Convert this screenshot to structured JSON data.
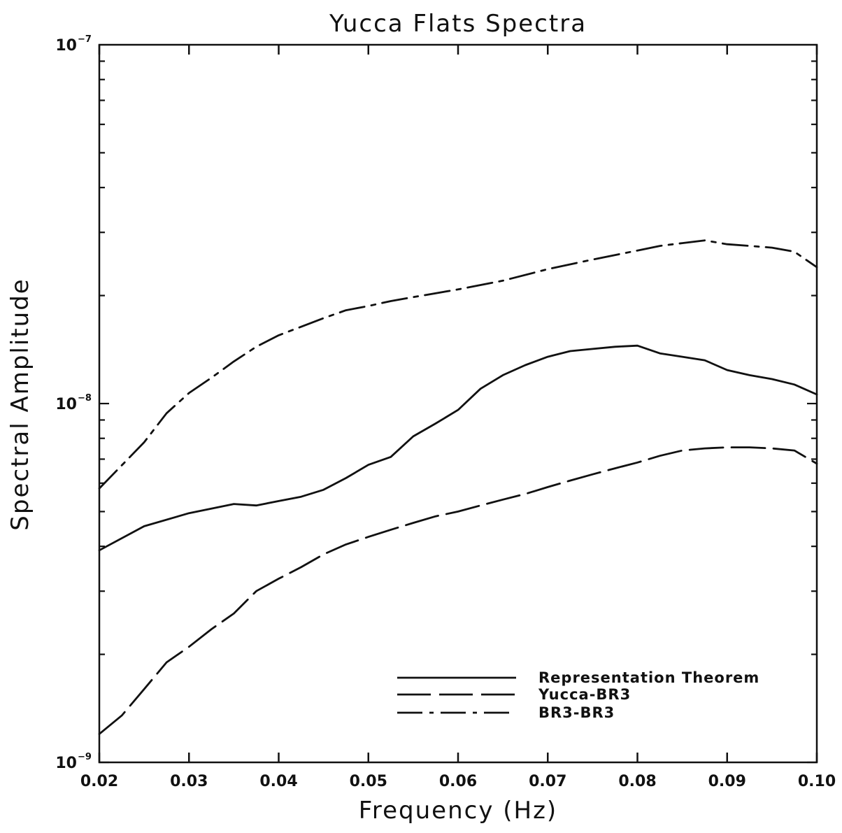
{
  "chart_data": {
    "type": "line",
    "title": "Yucca Flats Spectra",
    "xlabel": "Frequency (Hz)",
    "ylabel": "Spectral Amplitude",
    "xlim": [
      0.02,
      0.1
    ],
    "ylim": [
      1e-09,
      1e-07
    ],
    "yscale": "log",
    "grid": false,
    "legend_position": "bottom-right",
    "x_ticks": [
      0.02,
      0.03,
      0.04,
      0.05,
      0.06,
      0.07,
      0.08,
      0.09,
      0.1
    ],
    "x_tick_labels": [
      "0.02",
      "0.03",
      "0.04",
      "0.05",
      "0.06",
      "0.07",
      "0.08",
      "0.09",
      "0.10"
    ],
    "y_tick_labels": [
      {
        "value": 1e-09,
        "base": "10",
        "exp": "−9"
      },
      {
        "value": 1e-08,
        "base": "10",
        "exp": "−8"
      },
      {
        "value": 1e-07,
        "base": "10",
        "exp": "−7"
      }
    ],
    "series": [
      {
        "name": "Representation Theorem",
        "style": "solid",
        "x": [
          0.02,
          0.025,
          0.03,
          0.035,
          0.0375,
          0.04,
          0.0425,
          0.045,
          0.0475,
          0.05,
          0.0525,
          0.055,
          0.0575,
          0.06,
          0.0625,
          0.065,
          0.0675,
          0.07,
          0.0725,
          0.075,
          0.0775,
          0.08,
          0.0825,
          0.085,
          0.0875,
          0.09,
          0.0925,
          0.095,
          0.0975,
          0.1
        ],
        "y": [
          3.9e-09,
          4.55e-09,
          4.95e-09,
          5.25e-09,
          5.2e-09,
          5.35e-09,
          5.5e-09,
          5.75e-09,
          6.2e-09,
          6.75e-09,
          7.1e-09,
          8.1e-09,
          8.8e-09,
          9.6e-09,
          1.1e-08,
          1.2e-08,
          1.28e-08,
          1.35e-08,
          1.4e-08,
          1.42e-08,
          1.44e-08,
          1.45e-08,
          1.38e-08,
          1.35e-08,
          1.32e-08,
          1.24e-08,
          1.2e-08,
          1.17e-08,
          1.13e-08,
          1.06e-08
        ]
      },
      {
        "name": "Yucca-BR3",
        "style": "dashed",
        "x": [
          0.02,
          0.0225,
          0.025,
          0.0275,
          0.03,
          0.0325,
          0.035,
          0.0375,
          0.04,
          0.0425,
          0.045,
          0.0475,
          0.05,
          0.0525,
          0.055,
          0.0575,
          0.06,
          0.0625,
          0.065,
          0.0675,
          0.07,
          0.0725,
          0.075,
          0.0775,
          0.08,
          0.0825,
          0.085,
          0.0875,
          0.09,
          0.0925,
          0.095,
          0.0975,
          0.1
        ],
        "y": [
          1.2e-09,
          1.35e-09,
          1.6e-09,
          1.9e-09,
          2.1e-09,
          2.35e-09,
          2.6e-09,
          3e-09,
          3.25e-09,
          3.5e-09,
          3.8e-09,
          4.05e-09,
          4.25e-09,
          4.45e-09,
          4.65e-09,
          4.85e-09,
          5e-09,
          5.2e-09,
          5.4e-09,
          5.6e-09,
          5.85e-09,
          6.1e-09,
          6.35e-09,
          6.6e-09,
          6.85e-09,
          7.15e-09,
          7.4e-09,
          7.5e-09,
          7.55e-09,
          7.55e-09,
          7.5e-09,
          7.4e-09,
          6.8e-09
        ]
      },
      {
        "name": "BR3-BR3",
        "style": "dashdot",
        "x": [
          0.02,
          0.025,
          0.0275,
          0.03,
          0.0325,
          0.035,
          0.0375,
          0.04,
          0.045,
          0.0475,
          0.05,
          0.0525,
          0.055,
          0.06,
          0.065,
          0.07,
          0.075,
          0.08,
          0.0825,
          0.085,
          0.0875,
          0.09,
          0.0925,
          0.095,
          0.0975,
          0.1
        ],
        "y": [
          5.8e-09,
          7.8e-09,
          9.4e-09,
          1.07e-08,
          1.18e-08,
          1.31e-08,
          1.44e-08,
          1.55e-08,
          1.73e-08,
          1.82e-08,
          1.87e-08,
          1.93e-08,
          1.98e-08,
          2.08e-08,
          2.2e-08,
          2.37e-08,
          2.52e-08,
          2.67e-08,
          2.75e-08,
          2.8e-08,
          2.85e-08,
          2.78e-08,
          2.75e-08,
          2.72e-08,
          2.65e-08,
          2.4e-08
        ]
      }
    ]
  },
  "colors": {
    "line": "#111111",
    "background": "#ffffff"
  }
}
